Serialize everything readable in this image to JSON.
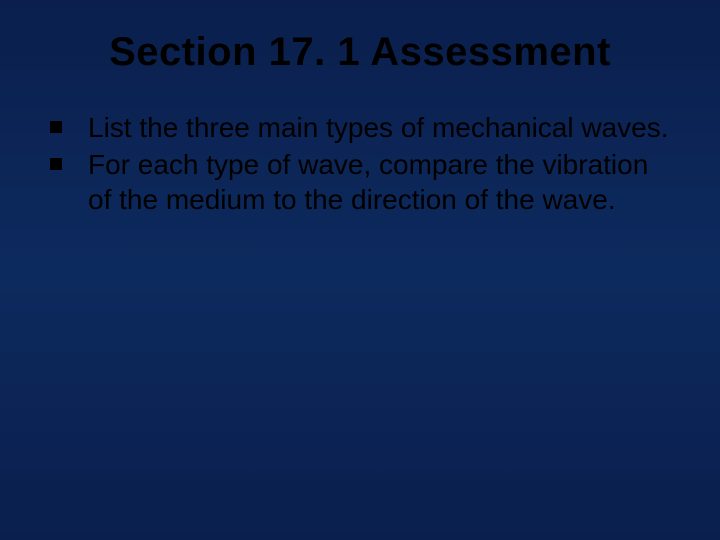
{
  "slide": {
    "title": "Section 17. 1 Assessment",
    "bullets": [
      {
        "text": "List the three main types of mechanical waves."
      },
      {
        "text": "For each type of wave, compare the vibration of the medium to the direction of the wave."
      }
    ],
    "background_gradient": {
      "top": "#0a1f4d",
      "middle": "#0d2a5e",
      "bottom": "#0a1f4d"
    },
    "title_color": "#000000",
    "title_fontsize": 40,
    "bullet_color": "#000000",
    "bullet_fontsize": 28,
    "bullet_marker_color": "#000000",
    "bullet_marker_size": 12
  }
}
